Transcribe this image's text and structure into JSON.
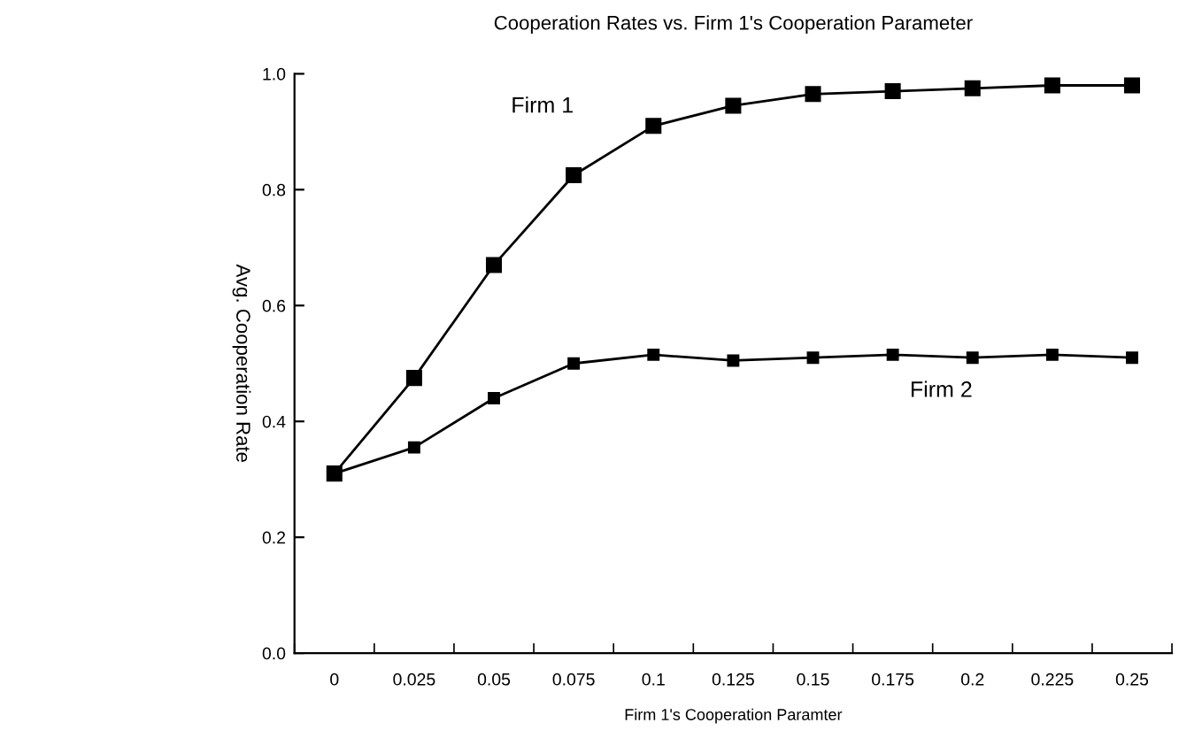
{
  "chart_data": {
    "type": "line",
    "title": "Cooperation Rates vs. Firm 1's Cooperation Parameter",
    "xlabel": "Firm 1's Cooperation Paramter",
    "ylabel": "Avg. Cooperation Rate",
    "categories": [
      "0",
      "0.025",
      "0.05",
      "0.075",
      "0.1",
      "0.125",
      "0.15",
      "0.175",
      "0.2",
      "0.225",
      "0.25"
    ],
    "series": [
      {
        "name": "Firm 1",
        "color": "#000000",
        "values": [
          0.31,
          0.475,
          0.67,
          0.825,
          0.91,
          0.945,
          0.965,
          0.97,
          0.975,
          0.98,
          0.98
        ]
      },
      {
        "name": "Firm 2",
        "color": "#000000",
        "values": [
          0.31,
          0.355,
          0.44,
          0.5,
          0.515,
          0.505,
          0.51,
          0.515,
          0.51,
          0.515,
          0.51
        ]
      }
    ],
    "ylim": [
      0,
      1
    ],
    "yticks": [
      {
        "value": 0,
        "label": "0.0"
      },
      0.2,
      0.4,
      0.6,
      0.8,
      {
        "value": 1,
        "label": "1.0"
      }
    ],
    "marker": "square",
    "line_style": "solid",
    "grid": false,
    "legend": false
  }
}
